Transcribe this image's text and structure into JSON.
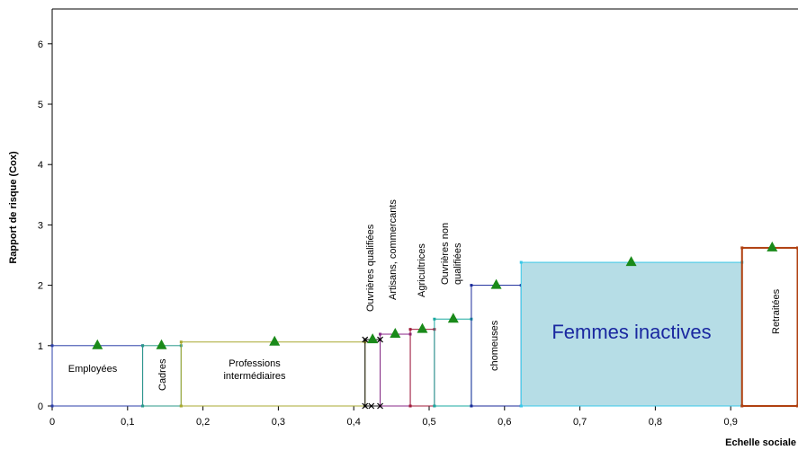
{
  "chart_data": {
    "type": "area",
    "xlabel": "Echelle sociale",
    "ylabel": "Rapport de risque (Cox)",
    "xlim": [
      0,
      0.99
    ],
    "ylim": [
      0,
      6.6
    ],
    "x_ticks": [
      "0",
      "0,1",
      "0,2",
      "0,3",
      "0,4",
      "0,5",
      "0,6",
      "0,7",
      "0,8",
      "0,9"
    ],
    "y_ticks": [
      "0",
      "1",
      "2",
      "3",
      "4",
      "5",
      "6"
    ],
    "grid": false,
    "series": [
      {
        "name": "Employées",
        "x0": 0.0,
        "x1": 0.12,
        "value": 1.0,
        "marker_x": 0.06,
        "color": "#2b3fa8",
        "fill": "none",
        "label_orientation": "horizontal"
      },
      {
        "name": "Cadres",
        "x0": 0.12,
        "x1": 0.171,
        "value": 1.0,
        "marker_x": 0.145,
        "color": "#2b9a8a",
        "fill": "none",
        "label_orientation": "vertical"
      },
      {
        "name": "Professions intermédiaires",
        "x0": 0.171,
        "x1": 0.415,
        "value": 1.06,
        "marker_x": 0.295,
        "color": "#a8a830",
        "fill": "none",
        "label_orientation": "horizontal"
      },
      {
        "name": "Ouvrières qualifiées",
        "x0": 0.415,
        "x1": 0.435,
        "value": 1.1,
        "marker_x": 0.425,
        "color": "#111111",
        "fill": "none",
        "label_orientation": "vertical"
      },
      {
        "name": "Artisans, commercants",
        "x0": 0.435,
        "x1": 0.475,
        "value": 1.19,
        "marker_x": 0.455,
        "color": "#8a2a8a",
        "fill": "none",
        "label_orientation": "vertical"
      },
      {
        "name": "Agricultrices",
        "x0": 0.475,
        "x1": 0.507,
        "value": 1.27,
        "marker_x": 0.491,
        "color": "#a01a3a",
        "fill": "none",
        "label_orientation": "vertical"
      },
      {
        "name": "Ouvrières non qualifiées",
        "x0": 0.507,
        "x1": 0.556,
        "value": 1.44,
        "marker_x": 0.532,
        "color": "#1aa8a0",
        "fill": "none",
        "label_orientation": "vertical"
      },
      {
        "name": "chomeuses",
        "x0": 0.556,
        "x1": 0.622,
        "value": 2.0,
        "marker_x": 0.589,
        "color": "#1a2a9a",
        "fill": "none",
        "label_orientation": "vertical"
      },
      {
        "name": "Femmes inactives",
        "x0": 0.622,
        "x1": 0.915,
        "value": 2.38,
        "marker_x": 0.768,
        "color": "#38c8e8",
        "fill": "#b6dde6",
        "label_orientation": "horizontal"
      },
      {
        "name": "Retraitées",
        "x0": 0.915,
        "x1": 0.99,
        "value": 2.62,
        "marker_x": 0.955,
        "color": "#b04010",
        "fill": "none",
        "label_orientation": "vertical"
      }
    ],
    "marker_color": "#1a8a1a"
  }
}
